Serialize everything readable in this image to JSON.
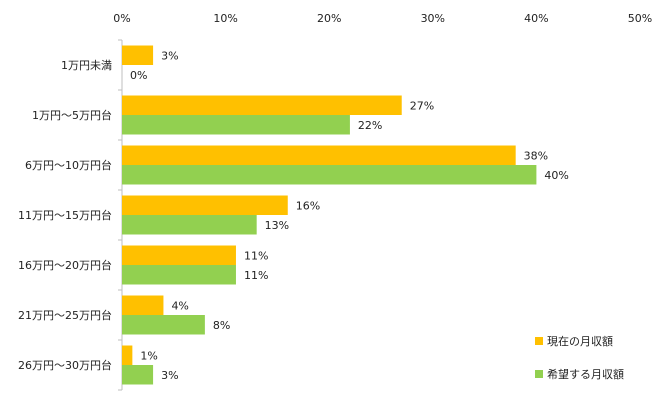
{
  "chart_data": {
    "type": "bar",
    "orientation": "horizontal",
    "title": "",
    "xlabel": "",
    "ylabel": "",
    "xlim": [
      0,
      50
    ],
    "x_ticks": [
      "0%",
      "10%",
      "20%",
      "30%",
      "40%",
      "50%"
    ],
    "grid": false,
    "legend_position": "bottom-right",
    "categories": [
      "1万円未満",
      "1万円～5万円台",
      "6万円～10万円台",
      "11万円～15万円台",
      "16万円～20万円台",
      "21万円～25万円台",
      "26万円～30万円台"
    ],
    "series": [
      {
        "name": "現在の月収額",
        "color": "#FFC000",
        "values": [
          3,
          27,
          38,
          16,
          11,
          4,
          1
        ]
      },
      {
        "name": "希望する月収額",
        "color": "#92D050",
        "values": [
          0,
          22,
          40,
          13,
          11,
          8,
          3
        ]
      }
    ],
    "data_label_suffix": "%"
  }
}
